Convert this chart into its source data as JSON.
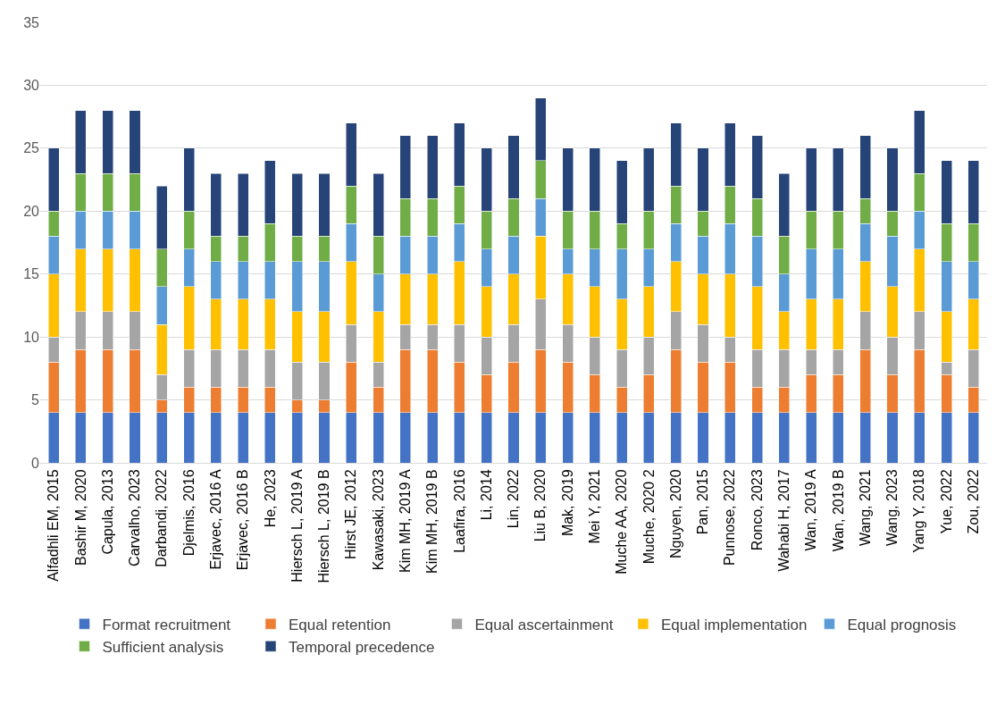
{
  "chart_data": {
    "type": "bar",
    "stacked": true,
    "categories": [
      "Alfadhli EM, 2015",
      "Bashir M, 2020",
      "Capula, 2013",
      "Carvalho, 2023",
      "Darbandi, 2022",
      "Djelmis, 2016",
      "Erjavec, 2016 A",
      "Erjavec, 2016 B",
      "He, 2023",
      "Hiersch L, 2019 A",
      "Hiersch L, 2019 B",
      "Hirst JE, 2012",
      "Kawasaki, 2023",
      "Kim MH, 2019 A",
      "Kim MH, 2019 B",
      "Laafira, 2016",
      "Li, 2014",
      "Lin, 2022",
      "Liu B, 2020",
      "Mak, 2019",
      "Mei Y, 2021",
      "Muche AA, 2020",
      "Muche, 2020 2",
      "Nguyen, 2020",
      "Pan, 2015",
      "Punnose, 2022",
      "Ronco, 2023",
      "Wahabi H, 2017",
      "Wan, 2019 A",
      "Wan, 2019 B",
      "Wang, 2021",
      "Wang, 2023",
      "Yang Y, 2018",
      "Yue, 2022",
      "Zou, 2022"
    ],
    "series": [
      {
        "name": "Format recruitment",
        "color": "#4472c4",
        "values": [
          4,
          4,
          4,
          4,
          4,
          4,
          4,
          4,
          4,
          4,
          4,
          4,
          4,
          4,
          4,
          4,
          4,
          4,
          4,
          4,
          4,
          4,
          4,
          4,
          4,
          4,
          4,
          4,
          4,
          4,
          4,
          4,
          4,
          4,
          4
        ]
      },
      {
        "name": "Equal retention",
        "color": "#ed7d31",
        "values": [
          4,
          5,
          5,
          5,
          1,
          2,
          2,
          2,
          2,
          1,
          1,
          4,
          2,
          5,
          5,
          4,
          3,
          4,
          5,
          4,
          3,
          2,
          3,
          5,
          4,
          4,
          2,
          2,
          3,
          3,
          5,
          3,
          5,
          3,
          2
        ]
      },
      {
        "name": "Equal ascertainment",
        "color": "#a5a5a5",
        "values": [
          2,
          3,
          3,
          3,
          2,
          3,
          3,
          3,
          3,
          3,
          3,
          3,
          2,
          2,
          2,
          3,
          3,
          3,
          4,
          3,
          3,
          3,
          3,
          3,
          3,
          2,
          3,
          3,
          2,
          2,
          3,
          3,
          3,
          1,
          3
        ]
      },
      {
        "name": "Equal implementation",
        "color": "#ffc000",
        "values": [
          5,
          5,
          5,
          5,
          4,
          5,
          4,
          4,
          4,
          4,
          4,
          5,
          4,
          4,
          4,
          5,
          4,
          4,
          5,
          4,
          4,
          4,
          4,
          4,
          4,
          5,
          5,
          3,
          4,
          4,
          4,
          4,
          5,
          4,
          4
        ]
      },
      {
        "name": "Equal prognosis",
        "color": "#5b9bd5",
        "values": [
          3,
          3,
          3,
          3,
          3,
          3,
          3,
          3,
          3,
          4,
          4,
          3,
          3,
          3,
          3,
          3,
          3,
          3,
          3,
          2,
          3,
          4,
          3,
          3,
          3,
          4,
          4,
          3,
          4,
          4,
          3,
          4,
          3,
          4,
          3
        ]
      },
      {
        "name": "Sufficient analysis",
        "color": "#70ad47",
        "values": [
          2,
          3,
          3,
          3,
          3,
          3,
          2,
          2,
          3,
          2,
          2,
          3,
          3,
          3,
          3,
          3,
          3,
          3,
          3,
          3,
          3,
          2,
          3,
          3,
          2,
          3,
          3,
          3,
          3,
          3,
          2,
          2,
          3,
          3,
          3
        ]
      },
      {
        "name": "Temporal precedence",
        "color": "#264478",
        "values": [
          5,
          5,
          5,
          5,
          5,
          5,
          5,
          5,
          5,
          5,
          5,
          5,
          5,
          5,
          5,
          5,
          5,
          5,
          5,
          5,
          5,
          5,
          5,
          5,
          5,
          5,
          5,
          5,
          5,
          5,
          5,
          5,
          5,
          5,
          5
        ]
      }
    ],
    "ylim": [
      0,
      35
    ],
    "yticks": [
      0,
      5,
      10,
      15,
      20,
      25,
      30,
      35
    ],
    "grid": "y",
    "legend": "bottom"
  }
}
